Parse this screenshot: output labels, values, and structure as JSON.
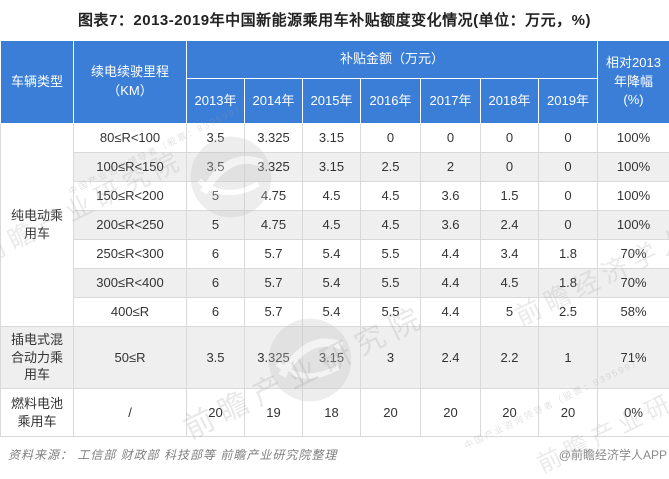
{
  "title": "图表7：2013-2019年中国新能源乘用车补贴额度变化情况(单位：万元，%)",
  "colors": {
    "header_bg": "#3B7ED8",
    "header_text": "#ffffff",
    "stripe": "#efefef",
    "grid_border": "#d9d9d9",
    "title_text": "#222222",
    "body_text": "#333333",
    "footer_text": "#7f7f7f"
  },
  "table": {
    "header": {
      "vehicle_type": "车辆类型",
      "range_label": "续电续驶里程\n（KM）",
      "subsidy_label": "补贴金额（万元）",
      "years": [
        "2013年",
        "2014年",
        "2015年",
        "2016年",
        "2017年",
        "2018年",
        "2019年"
      ],
      "decline_label": "相对2013年降幅\n(%)"
    },
    "groups": [
      {
        "type": "纯电动乘用车",
        "rows": [
          {
            "range": "80≤R<100",
            "values": [
              "3.5",
              "3.325",
              "3.15",
              "0",
              "0",
              "0",
              "0"
            ],
            "decline": "100%"
          },
          {
            "range": "100≤R<150",
            "values": [
              "3.5",
              "3.325",
              "3.15",
              "2.5",
              "2",
              "0",
              "0"
            ],
            "decline": "100%"
          },
          {
            "range": "150≤R<200",
            "values": [
              "5",
              "4.75",
              "4.5",
              "4.5",
              "3.6",
              "1.5",
              "0"
            ],
            "decline": "100%"
          },
          {
            "range": "200≤R<250",
            "values": [
              "5",
              "4.75",
              "4.5",
              "4.5",
              "3.6",
              "2.4",
              "0"
            ],
            "decline": "100%"
          },
          {
            "range": "250≤R<300",
            "values": [
              "6",
              "5.7",
              "5.4",
              "5.5",
              "4.4",
              "3.4",
              "1.8"
            ],
            "decline": "70%"
          },
          {
            "range": "300≤R<400",
            "values": [
              "6",
              "5.7",
              "5.4",
              "5.5",
              "4.4",
              "4.5",
              "1.8"
            ],
            "decline": "70%"
          },
          {
            "range": "400≤R",
            "values": [
              "6",
              "5.7",
              "5.4",
              "5.5",
              "4.4",
              "5",
              "2.5"
            ],
            "decline": "58%"
          }
        ]
      },
      {
        "type": "插电式混合动力乘用车",
        "rows": [
          {
            "range": "50≤R",
            "values": [
              "3.5",
              "3.325",
              "3.15",
              "3",
              "2.4",
              "2.2",
              "1"
            ],
            "decline": "71%"
          }
        ]
      },
      {
        "type": "燃料电池乘用车",
        "rows": [
          {
            "range": "/",
            "values": [
              "20",
              "19",
              "18",
              "20",
              "20",
              "20",
              "20"
            ],
            "decline": "0%"
          }
        ]
      }
    ]
  },
  "footer": {
    "source": "资料来源： 工信部 财政部 科技部等 前瞻产业研究院整理",
    "credit": "@前瞻经济学人APP"
  },
  "watermarks": {
    "w1": "前瞻产业研究院",
    "w2": "前瞻经济学人",
    "w3": "前瞻产业研究院",
    "w4": "中国产业咨询领导者（股票：839599）",
    "w5": "中国产业咨询领导者（股票：839599）",
    "w6": "前瞻产业研究院"
  },
  "chart_data": {
    "type": "table",
    "title": "图表7：2013-2019年中国新能源乘用车补贴额度变化情况(单位：万元，%)",
    "columns": [
      "车辆类型",
      "续电续驶里程（KM）",
      "2013年",
      "2014年",
      "2015年",
      "2016年",
      "2017年",
      "2018年",
      "2019年",
      "相对2013年降幅(%)"
    ],
    "rows": [
      [
        "纯电动乘用车",
        "80≤R<100",
        3.5,
        3.325,
        3.15,
        0,
        0,
        0,
        0,
        "100%"
      ],
      [
        "纯电动乘用车",
        "100≤R<150",
        3.5,
        3.325,
        3.15,
        2.5,
        2,
        0,
        0,
        "100%"
      ],
      [
        "纯电动乘用车",
        "150≤R<200",
        5,
        4.75,
        4.5,
        4.5,
        3.6,
        1.5,
        0,
        "100%"
      ],
      [
        "纯电动乘用车",
        "200≤R<250",
        5,
        4.75,
        4.5,
        4.5,
        3.6,
        2.4,
        0,
        "100%"
      ],
      [
        "纯电动乘用车",
        "250≤R<300",
        6,
        5.7,
        5.4,
        5.5,
        4.4,
        3.4,
        1.8,
        "70%"
      ],
      [
        "纯电动乘用车",
        "300≤R<400",
        6,
        5.7,
        5.4,
        5.5,
        4.4,
        4.5,
        1.8,
        "70%"
      ],
      [
        "纯电动乘用车",
        "400≤R",
        6,
        5.7,
        5.4,
        5.5,
        4.4,
        5,
        2.5,
        "58%"
      ],
      [
        "插电式混合动力乘用车",
        "50≤R",
        3.5,
        3.325,
        3.15,
        3,
        2.4,
        2.2,
        1,
        "71%"
      ],
      [
        "燃料电池乘用车",
        "/",
        20,
        19,
        18,
        20,
        20,
        20,
        20,
        "0%"
      ]
    ]
  }
}
